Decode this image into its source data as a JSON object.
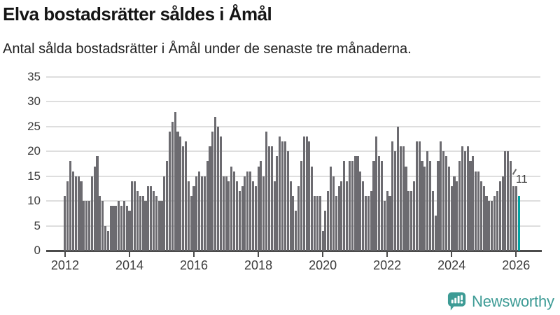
{
  "header": {
    "title": "Elva bostadsrätter såldes i Åmål",
    "subtitle": "Antal sålda bostadsrätter i Åmål under de senaste tre månaderna."
  },
  "chart_data": {
    "type": "bar",
    "title": "Elva bostadsrätter såldes i Åmål",
    "subtitle": "Antal sålda bostadsrätter i Åmål under de senaste tre månaderna.",
    "start_year": 2012,
    "frequency": "monthly",
    "values": [
      11,
      14,
      18,
      16,
      15,
      15,
      14,
      10,
      10,
      10,
      15,
      17,
      19,
      11,
      10,
      5,
      4,
      9,
      9,
      9,
      10,
      9,
      10,
      9,
      8,
      14,
      14,
      12,
      11,
      11,
      10,
      13,
      13,
      12,
      11,
      10,
      10,
      15,
      18,
      24,
      26,
      28,
      24,
      23,
      21,
      22,
      14,
      11,
      13,
      15,
      16,
      15,
      15,
      18,
      21,
      24,
      27,
      25,
      23,
      15,
      15,
      14,
      17,
      16,
      14,
      12,
      13,
      15,
      16,
      16,
      14,
      13,
      17,
      18,
      15,
      24,
      21,
      21,
      14,
      19,
      23,
      22,
      22,
      20,
      14,
      11,
      8,
      13,
      18,
      23,
      23,
      22,
      17,
      11,
      11,
      11,
      4,
      8,
      12,
      17,
      15,
      11,
      13,
      14,
      18,
      14,
      18,
      18,
      19,
      19,
      16,
      14,
      11,
      11,
      12,
      18,
      23,
      19,
      18,
      10,
      12,
      11,
      22,
      20,
      25,
      21,
      21,
      17,
      12,
      12,
      14,
      22,
      22,
      18,
      17,
      20,
      18,
      12,
      7,
      18,
      22,
      20,
      19,
      17,
      13,
      15,
      14,
      18,
      21,
      20,
      21,
      18,
      19,
      16,
      16,
      14,
      13,
      11,
      10,
      10,
      11,
      12,
      14,
      15,
      20,
      20,
      18,
      13,
      13,
      11
    ],
    "highlight": {
      "index": 169,
      "value": 11,
      "label": "11",
      "color": "#00A3A3"
    },
    "bar_color": "#6C6B70",
    "ylim": [
      0,
      35
    ],
    "yticks": [
      0,
      5,
      10,
      15,
      20,
      25,
      30,
      35
    ],
    "xticks": [
      2012,
      2014,
      2016,
      2018,
      2020,
      2022,
      2024,
      2026
    ],
    "grid": true,
    "gridline_color": "#dedede",
    "axis_color": "#4b4b4b"
  },
  "footer": {
    "brand": "Newsworthy",
    "brand_color": "#3D9B95"
  }
}
